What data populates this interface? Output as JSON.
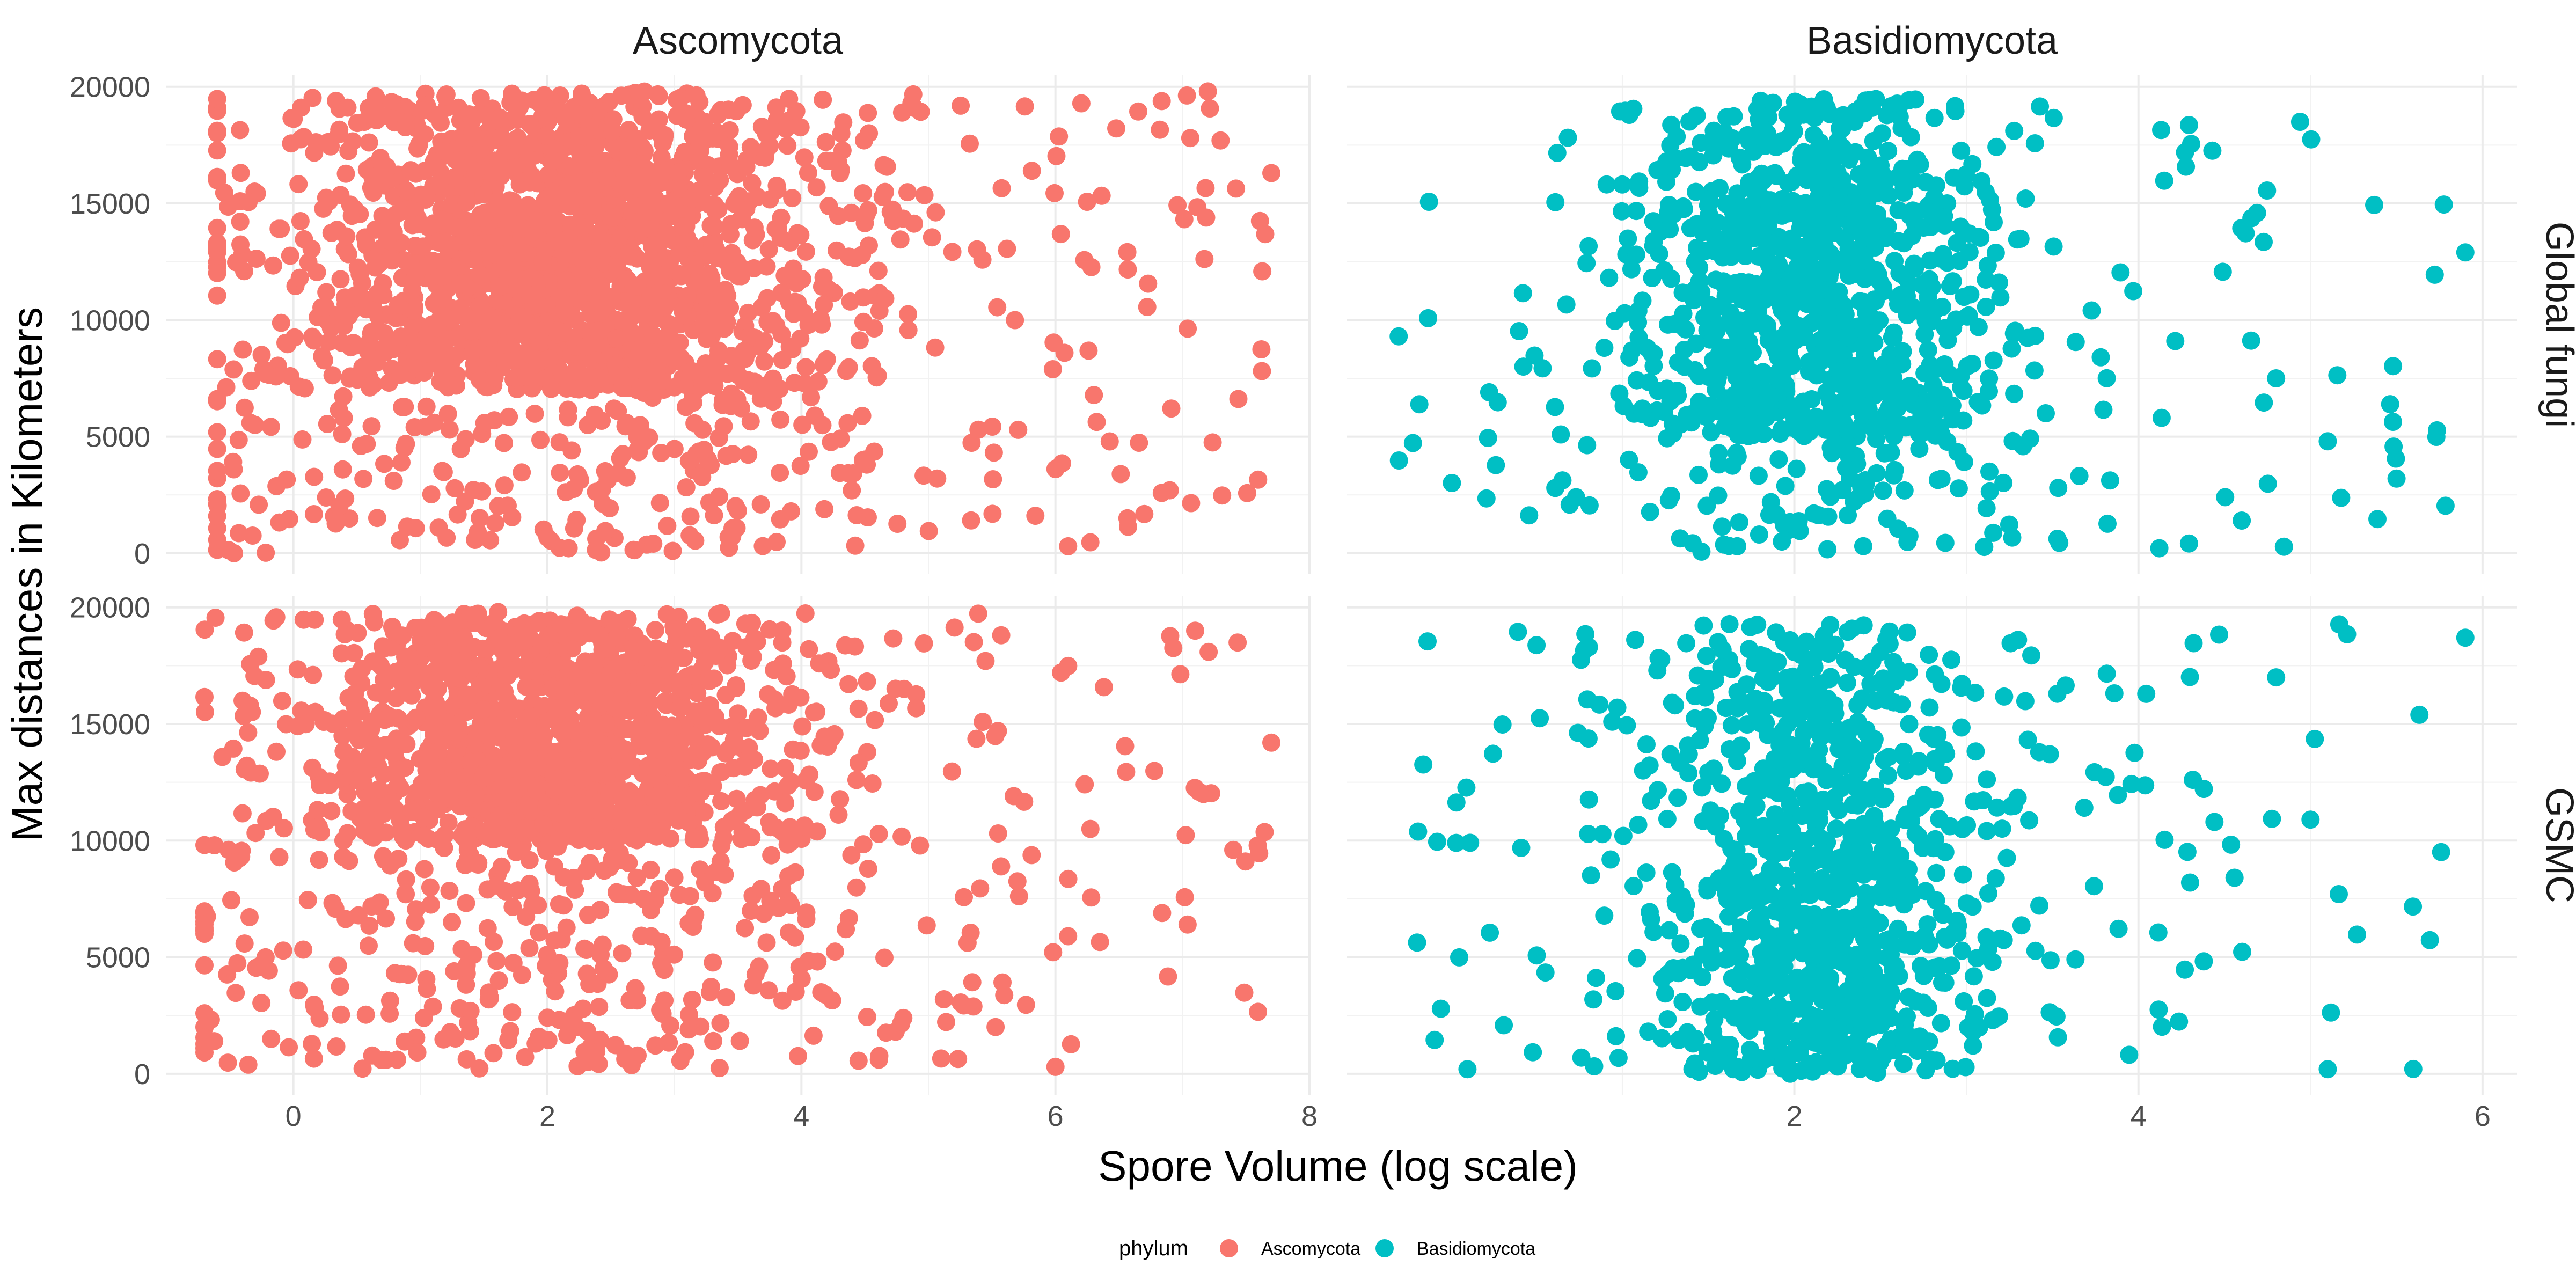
{
  "chart_data": {
    "type": "scatter",
    "xlabel": "Spore Volume (log scale)",
    "ylabel": "Max distances in Kilometers",
    "grid": true,
    "legend": {
      "title": "phylum",
      "position": "bottom",
      "entries": [
        {
          "name": "Ascomycota",
          "color": "#F8766D"
        },
        {
          "name": "Basidiomycota",
          "color": "#00BFC4"
        }
      ]
    },
    "facets": {
      "columns": [
        "Ascomycota",
        "Basidiomycota"
      ],
      "rows": [
        "Global fungi",
        "GSMC"
      ]
    },
    "axes": {
      "Ascomycota": {
        "xlim": [
          -1.0,
          8.0
        ],
        "xticks": [
          0,
          2,
          4,
          6,
          8
        ]
      },
      "Basidiomycota": {
        "xlim": [
          -0.6,
          6.2
        ],
        "xticks": [
          2,
          4,
          6
        ]
      },
      "y": {
        "ylim": [
          -900,
          20500
        ],
        "yticks": [
          0,
          5000,
          10000,
          15000,
          20000
        ]
      }
    },
    "point_summary": [
      {
        "column": "Ascomycota",
        "row": "Global fungi",
        "approx_points": 3400,
        "dense_region": {
          "x": [
            0.6,
            3.6
          ],
          "y": [
            7000,
            19800
          ]
        },
        "x_range": [
          -0.6,
          7.7
        ],
        "y_range": [
          0,
          19800
        ],
        "outliers": [
          [
            7.7,
            16300
          ],
          [
            7.2,
            19800
          ],
          [
            6.9,
            2700
          ],
          [
            6.1,
            300
          ],
          [
            7.3,
            17700
          ]
        ]
      },
      {
        "column": "Basidiomycota",
        "row": "Global fungi",
        "approx_points": 1900,
        "dense_region": {
          "x": [
            1.4,
            2.8
          ],
          "y": [
            5000,
            19500
          ]
        },
        "x_range": [
          -0.3,
          5.9
        ],
        "y_range": [
          0,
          19500
        ],
        "outliers": [
          [
            5.9,
            12900
          ],
          [
            5.5,
            3200
          ],
          [
            5.1,
            4800
          ],
          [
            4.8,
            7500
          ],
          [
            4.6,
            1400
          ],
          [
            -0.3,
            9300
          ]
        ]
      },
      {
        "column": "Ascomycota",
        "row": "GSMC",
        "approx_points": 3000,
        "dense_region": {
          "x": [
            0.6,
            3.4
          ],
          "y": [
            10000,
            19800
          ]
        },
        "x_range": [
          -0.7,
          7.7
        ],
        "y_range": [
          0,
          19800
        ],
        "outliers": [
          [
            7.7,
            14200
          ],
          [
            7.4,
            9600
          ],
          [
            7.1,
            19000
          ],
          [
            6.1,
            5900
          ],
          [
            6.0,
            300
          ]
        ]
      },
      {
        "column": "Basidiomycota",
        "row": "GSMC",
        "approx_points": 1700,
        "dense_region": {
          "x": [
            1.4,
            2.8
          ],
          "y": [
            0,
            19300
          ]
        },
        "x_range": [
          -0.2,
          5.9
        ],
        "y_range": [
          0,
          19300
        ],
        "outliers": [
          [
            5.9,
            18700
          ],
          [
            5.1,
            200
          ],
          [
            5.0,
            10900
          ],
          [
            4.8,
            17000
          ],
          [
            4.3,
            8200
          ],
          [
            0.1,
            200
          ]
        ]
      }
    ]
  }
}
